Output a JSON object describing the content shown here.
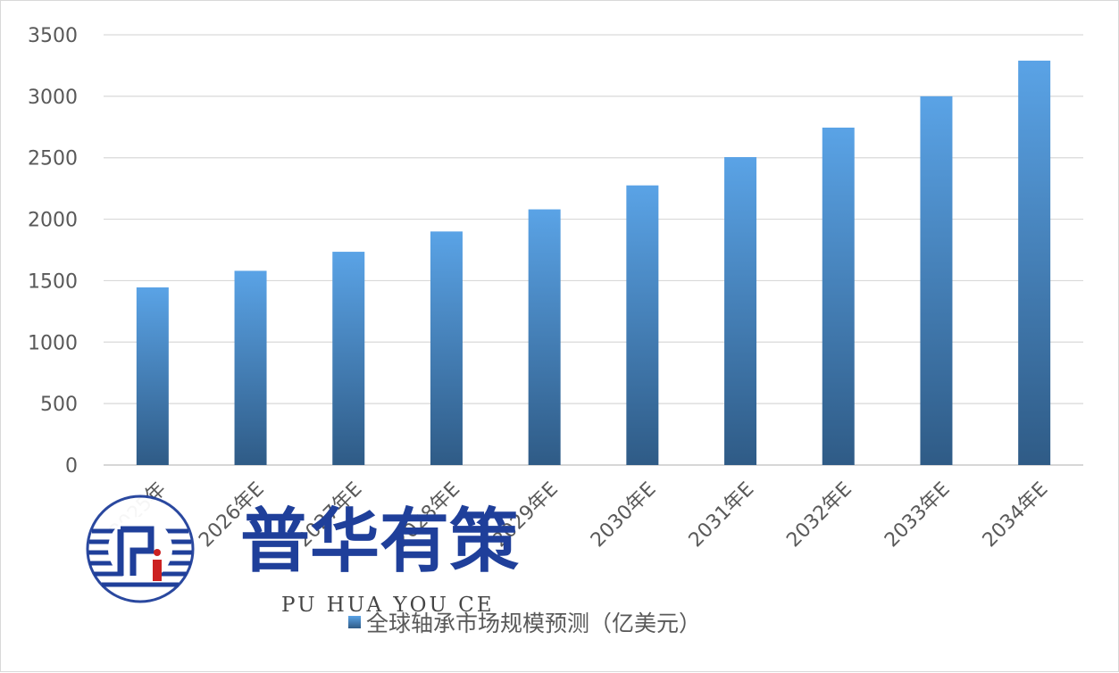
{
  "chart_data": {
    "type": "bar",
    "categories": [
      "2025年",
      "2026年E",
      "2027年E",
      "2028年E",
      "2029年E",
      "2030年E",
      "2031年E",
      "2032年E",
      "2033年E",
      "2034年E"
    ],
    "series": [
      {
        "name": "全球轴承市场规模预测（亿美元）",
        "values": [
          1445,
          1580,
          1735,
          1900,
          2080,
          2275,
          2505,
          2745,
          3000,
          3290
        ],
        "color_top": "#5aa3e6",
        "color_bottom": "#2f5b86"
      }
    ],
    "yticks": [
      "0",
      "500",
      "1000",
      "1500",
      "2000",
      "2500",
      "3000",
      "3500"
    ],
    "ylim": [
      0,
      3500
    ],
    "grid": true,
    "legend_position": "bottom"
  },
  "watermark": {
    "chinese": "普华有策",
    "pinyin": "PU HUA YOU CE",
    "color": "#1f3f9a"
  }
}
